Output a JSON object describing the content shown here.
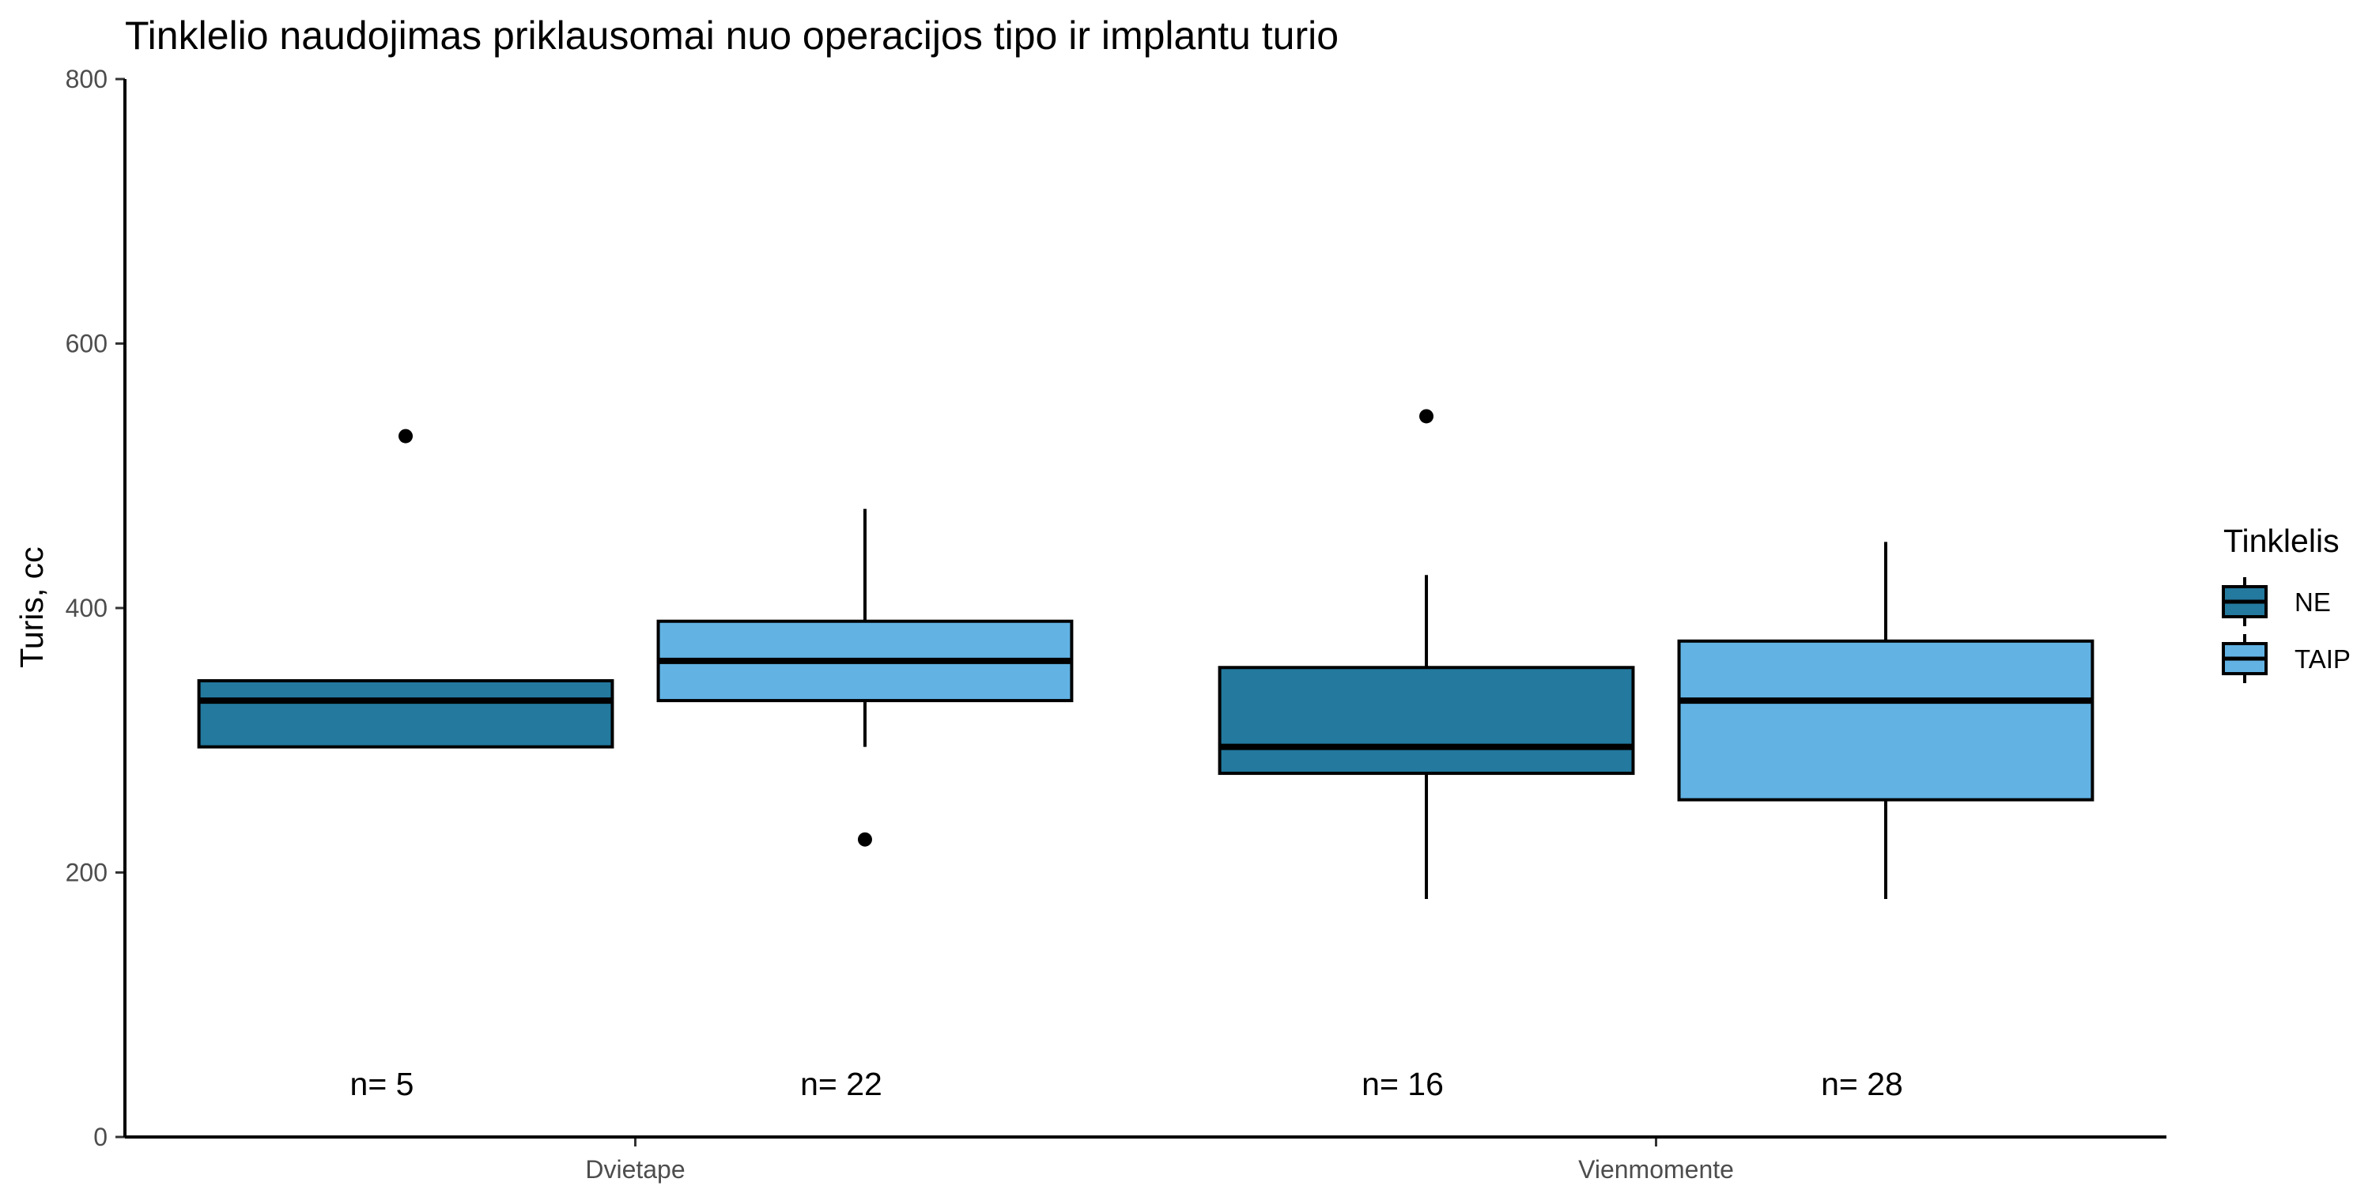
{
  "chart_data": {
    "type": "boxplot",
    "title": "Tinklelio naudojimas priklausomai nuo operacijos tipo ir implantu turio",
    "xlabel": "",
    "ylabel": "Turis, cc",
    "ylim": [
      0,
      800
    ],
    "yticks": [
      0,
      200,
      400,
      600,
      800
    ],
    "grid": false,
    "categories": [
      "Dvietape",
      "Vienmomente"
    ],
    "legend": {
      "title": "Tinklelis",
      "position": "right",
      "items": [
        {
          "label": "NE",
          "color": "#23799E"
        },
        {
          "label": "TAIP",
          "color": "#62B3E4"
        }
      ]
    },
    "series": [
      {
        "name": "NE",
        "color": "#23799E",
        "boxes": [
          {
            "category": "Dvietape",
            "whisker_low": 295,
            "q1": 295,
            "median": 330,
            "q3": 345,
            "whisker_high": 345,
            "outliers": [
              530
            ],
            "n_label": "n= 5"
          },
          {
            "category": "Vienmomente",
            "whisker_low": 180,
            "q1": 275,
            "median": 295,
            "q3": 355,
            "whisker_high": 425,
            "outliers": [
              545
            ],
            "n_label": "n= 16"
          }
        ]
      },
      {
        "name": "TAIP",
        "color": "#62B3E4",
        "boxes": [
          {
            "category": "Dvietape",
            "whisker_low": 295,
            "q1": 330,
            "median": 360,
            "q3": 390,
            "whisker_high": 475,
            "outliers": [
              225
            ],
            "n_label": "n= 22"
          },
          {
            "category": "Vienmomente",
            "whisker_low": 180,
            "q1": 255,
            "median": 330,
            "q3": 375,
            "whisker_high": 450,
            "outliers": [],
            "n_label": "n= 28"
          }
        ]
      }
    ]
  }
}
